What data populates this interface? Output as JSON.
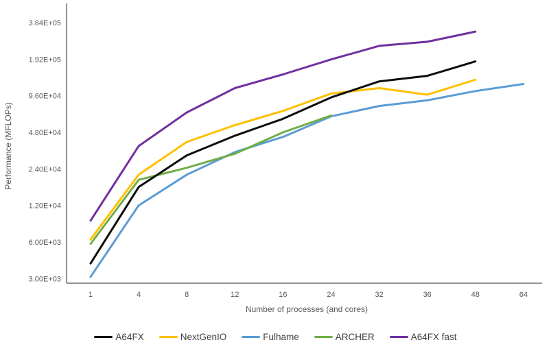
{
  "window": {
    "background": "#ffffff"
  },
  "colors": {
    "axis_line": "#262626",
    "tick_text": "#595959",
    "legend_text": "#404040"
  },
  "chart_data": {
    "type": "line",
    "title": "",
    "xlabel": "Number of processes (and cores)",
    "ylabel": "Performance (MFLOPs)",
    "x_categories": [
      "1",
      "4",
      "8",
      "12",
      "16",
      "24",
      "32",
      "36",
      "48",
      "64"
    ],
    "y_axis": {
      "scale": "log2",
      "tick_labels": [
        "3.00E+03",
        "6.00E+03",
        "1.20E+04",
        "2.40E+04",
        "4.80E+04",
        "9.60E+04",
        "1.92E+05",
        "3.84E+05"
      ],
      "tick_values": [
        3000,
        6000,
        12000,
        24000,
        48000,
        96000,
        192000,
        384000
      ],
      "range": [
        3000,
        384000
      ]
    },
    "grid": false,
    "legend_position": "bottom",
    "series": [
      {
        "name": "A64FX",
        "color": "#0d0d0d",
        "x": [
          "1",
          "4",
          "8",
          "12",
          "16",
          "24",
          "32",
          "36",
          "48"
        ],
        "values": [
          4000,
          17000,
          31000,
          45000,
          62000,
          93000,
          126000,
          140000,
          184000
        ]
      },
      {
        "name": "NextGenIO",
        "color": "#FFC000",
        "x": [
          "1",
          "4",
          "8",
          "12",
          "16",
          "24",
          "32",
          "36",
          "48"
        ],
        "values": [
          6300,
          21500,
          40000,
          55000,
          72000,
          100000,
          111000,
          98000,
          130000
        ]
      },
      {
        "name": "Fulhame",
        "color": "#5B9BD5",
        "x": [
          "1",
          "4",
          "8",
          "12",
          "16",
          "24",
          "32",
          "36",
          "48",
          "64"
        ],
        "values": [
          3100,
          12000,
          21500,
          33000,
          44000,
          65000,
          79000,
          88000,
          105000,
          120000
        ]
      },
      {
        "name": "ARCHER",
        "color": "#70AD47",
        "x": [
          "1",
          "4",
          "8",
          "12",
          "16",
          "24"
        ],
        "values": [
          5800,
          19500,
          24500,
          32000,
          48000,
          66000
        ]
      },
      {
        "name": "A64FX fast",
        "color": "#7030A0",
        "x": [
          "1",
          "4",
          "8",
          "12",
          "16",
          "24",
          "32",
          "36",
          "48"
        ],
        "values": [
          9000,
          37000,
          70000,
          111000,
          144000,
          191000,
          247000,
          267000,
          324000
        ]
      }
    ]
  }
}
